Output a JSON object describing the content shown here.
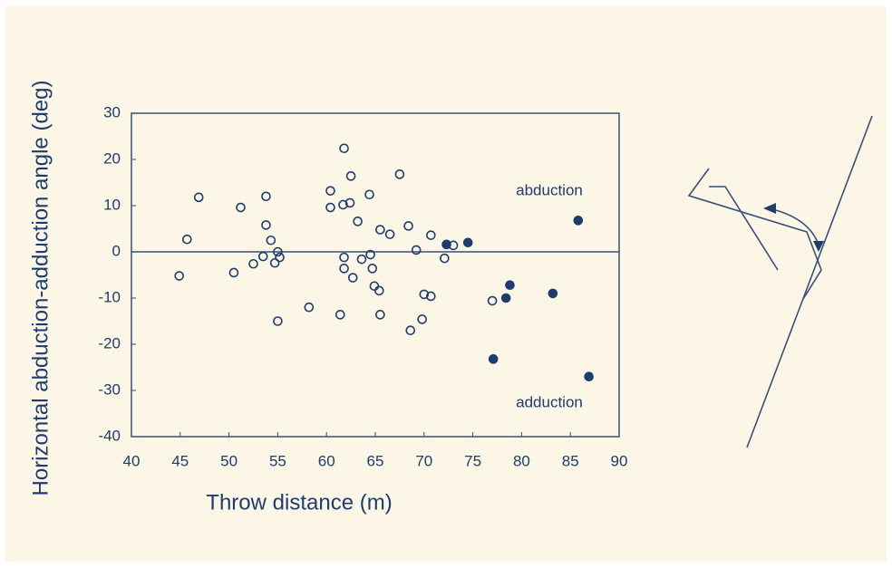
{
  "chart_data": {
    "type": "scatter",
    "xlabel": "Throw distance (m)",
    "ylabel": "Horizontal abduction-adduction angle (deg)",
    "annotations": [
      "abduction",
      "adduction"
    ],
    "xlim": [
      40,
      90
    ],
    "xticks": [
      40,
      45,
      50,
      55,
      60,
      65,
      70,
      75,
      80,
      85,
      90
    ],
    "ylim": [
      -40,
      30
    ],
    "yticks": [
      -40,
      -30,
      -20,
      -10,
      0,
      10,
      20,
      30
    ],
    "reference_line": 0,
    "series": [
      {
        "color": "#1e3d6e",
        "filled": false,
        "x": [
          44.9,
          45.7,
          46.9,
          50.5,
          51.2,
          52.5,
          53.5,
          53.8,
          53.8,
          54.3,
          54.7,
          55,
          55.2,
          55,
          58.2,
          60.4,
          60.4,
          61.4,
          61.8,
          61.7,
          61.8,
          61.8,
          62.4,
          62.5,
          62.7,
          63.2,
          63.6,
          64.4,
          64.5,
          64.7,
          64.9,
          65.4,
          65.5,
          65.5,
          66.5,
          67.5,
          68.4,
          68.6,
          69.2,
          69.8,
          70,
          70.7,
          70.7,
          72.1,
          73,
          77
        ],
        "values": [
          -5.2,
          2.7,
          11.8,
          -4.5,
          9.6,
          -2.6,
          -1,
          12,
          5.8,
          2.5,
          -2.4,
          0,
          -1.2,
          -15,
          -12,
          13.2,
          9.6,
          -13.6,
          22.4,
          10.2,
          -1.2,
          -3.6,
          10.6,
          16.4,
          -5.6,
          6.6,
          -1.6,
          12.4,
          -0.6,
          -3.6,
          -7.4,
          -8.4,
          4.8,
          -13.6,
          3.8,
          16.8,
          5.6,
          -17,
          0.4,
          -14.6,
          -9.2,
          -9.6,
          3.6,
          -1.4,
          1.4,
          -10.6
        ]
      },
      {
        "color": "#1e3d6e",
        "filled": true,
        "x": [
          72.3,
          74.5,
          77.1,
          78.4,
          78.8,
          83.2,
          85.8,
          86.9
        ],
        "values": [
          1.6,
          2,
          -23.2,
          -10,
          -7.2,
          -9,
          6.8,
          -27
        ]
      }
    ]
  }
}
